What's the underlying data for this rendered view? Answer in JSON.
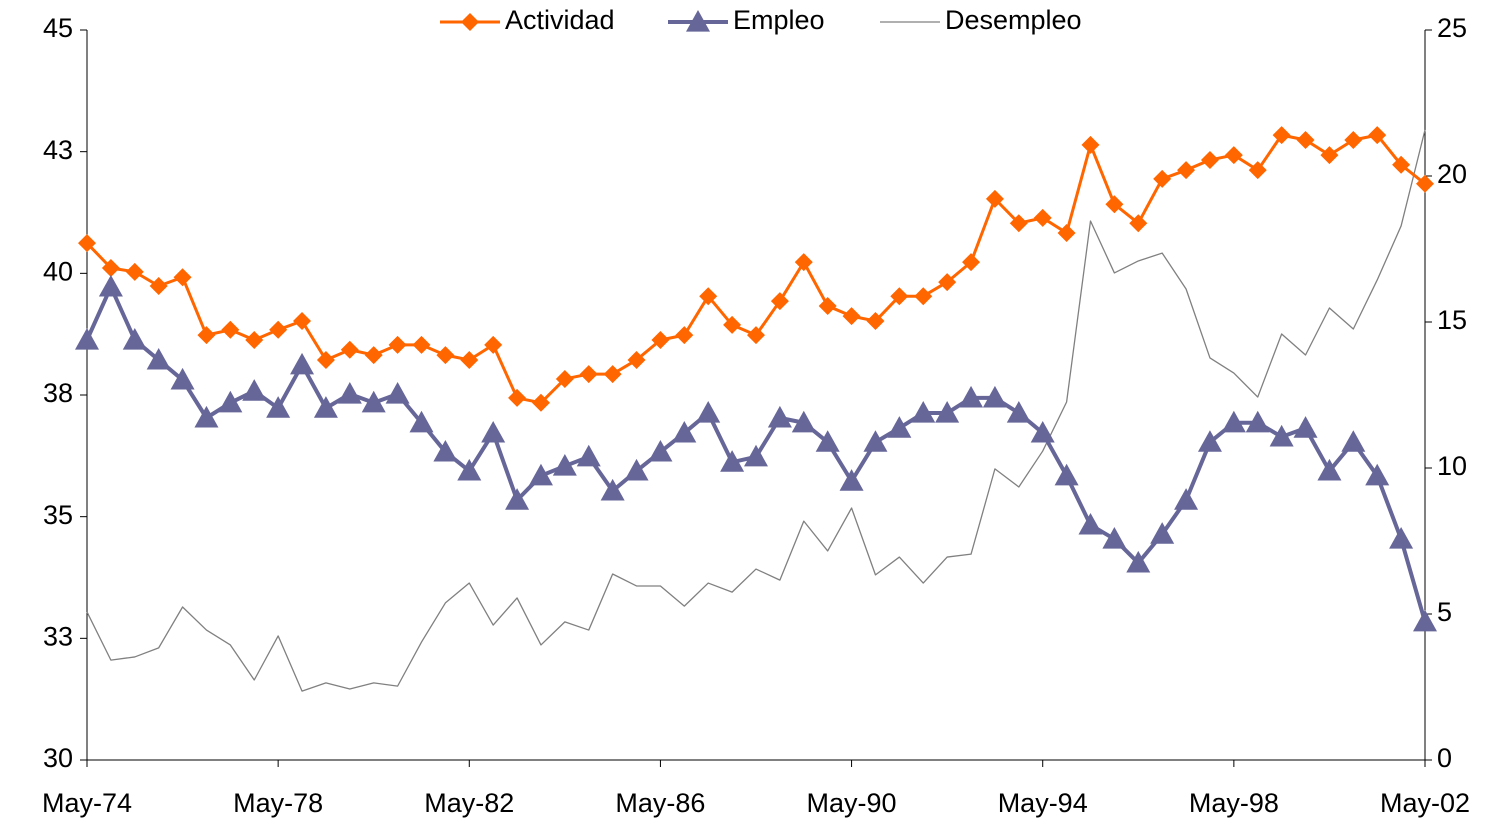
{
  "chart_data": {
    "type": "line",
    "categories": [
      "May-74",
      null,
      null,
      null,
      null,
      null,
      null,
      null,
      "May-78",
      null,
      null,
      null,
      null,
      null,
      null,
      null,
      "May-82",
      null,
      null,
      null,
      null,
      null,
      null,
      null,
      "May-86",
      null,
      null,
      null,
      null,
      null,
      null,
      null,
      "May-90",
      null,
      null,
      null,
      null,
      null,
      null,
      null,
      "May-94",
      null,
      null,
      null,
      null,
      null,
      null,
      null,
      "May-98",
      null,
      null,
      null,
      null,
      null,
      null,
      null,
      "May-02"
    ],
    "series": [
      {
        "name": "Actividad",
        "color": "#ff6600",
        "marker": "diamond",
        "values": [
          40.62,
          40.11,
          40.03,
          39.74,
          39.92,
          38.73,
          38.84,
          38.63,
          38.84,
          39.02,
          38.22,
          38.43,
          38.32,
          38.53,
          38.53,
          38.32,
          38.22,
          38.53,
          37.44,
          37.34,
          37.83,
          37.93,
          37.93,
          38.22,
          38.63,
          38.73,
          39.53,
          38.94,
          38.73,
          39.43,
          40.23,
          39.33,
          39.12,
          39.02,
          39.53,
          39.53,
          39.82,
          40.23,
          41.53,
          41.03,
          41.14,
          40.83,
          42.64,
          41.42,
          41.03,
          41.94,
          42.12,
          42.33,
          42.43,
          42.12,
          42.84,
          42.74,
          42.43,
          42.74,
          42.84,
          42.23,
          41.84
        ]
      },
      {
        "name": "Empleo",
        "color": "#666699",
        "marker": "triangle",
        "values": [
          38.63,
          39.72,
          38.63,
          38.22,
          37.81,
          37.03,
          37.34,
          37.58,
          37.23,
          38.12,
          37.23,
          37.52,
          37.34,
          37.52,
          36.93,
          36.33,
          35.94,
          36.72,
          35.34,
          35.84,
          36.04,
          36.23,
          35.53,
          35.94,
          36.33,
          36.72,
          37.13,
          36.12,
          36.23,
          37.03,
          36.93,
          36.53,
          35.73,
          36.53,
          36.82,
          37.13,
          37.13,
          37.44,
          37.44,
          37.13,
          36.72,
          35.84,
          34.83,
          34.54,
          34.05,
          34.64,
          35.34,
          36.53,
          36.93,
          36.93,
          36.64,
          36.82,
          35.94,
          36.53,
          35.84,
          34.54,
          32.84
        ]
      },
      {
        "name": "Desempleo",
        "color": "#808080",
        "axis": "y2",
        "values": [
          5.07,
          3.42,
          3.53,
          3.84,
          5.24,
          4.45,
          3.94,
          2.74,
          4.25,
          2.36,
          2.64,
          2.43,
          2.64,
          2.53,
          4.04,
          5.38,
          6.06,
          4.62,
          5.55,
          3.94,
          4.73,
          4.45,
          6.37,
          5.96,
          5.96,
          5.27,
          6.06,
          5.75,
          6.54,
          6.16,
          8.18,
          7.16,
          8.63,
          6.34,
          6.95,
          6.06,
          6.95,
          7.05,
          9.97,
          9.35,
          10.58,
          12.26,
          18.46,
          16.68,
          17.09,
          17.36,
          16.13,
          13.77,
          13.25,
          12.43,
          14.59,
          13.87,
          15.48,
          14.76,
          16.44,
          18.29,
          21.58
        ]
      }
    ],
    "ylim": [
      30,
      45
    ],
    "yticks": [
      30,
      {
        "value": 32.5,
        "label": "33"
      },
      35,
      {
        "value": 37.5,
        "label": "38"
      },
      40,
      {
        "value": 42.5,
        "label": "43"
      },
      45
    ],
    "y2lim": [
      0,
      25
    ],
    "y2ticks": [
      0,
      5,
      10,
      15,
      20,
      25
    ],
    "grid": false,
    "legend": "top"
  }
}
